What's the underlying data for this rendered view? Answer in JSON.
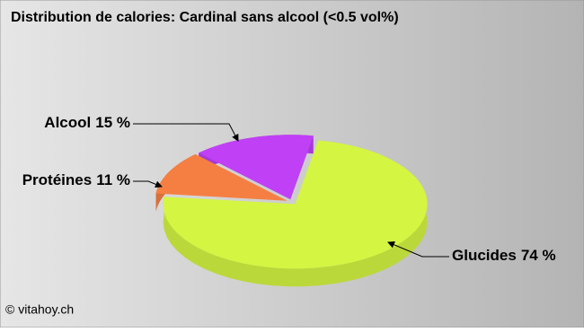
{
  "chart_data": {
    "type": "pie",
    "title": "Distribution de calories: Cardinal sans alcool (<0.5 vol%)",
    "categories": [
      "Glucides",
      "Protéines",
      "Alcool"
    ],
    "values": [
      74,
      11,
      15
    ],
    "value_labels": [
      "74 %",
      "11 %",
      "15 %"
    ],
    "colors": [
      "#d4f542",
      "#f57f42",
      "#c040f5"
    ],
    "source": "© vitahoy.ch"
  }
}
